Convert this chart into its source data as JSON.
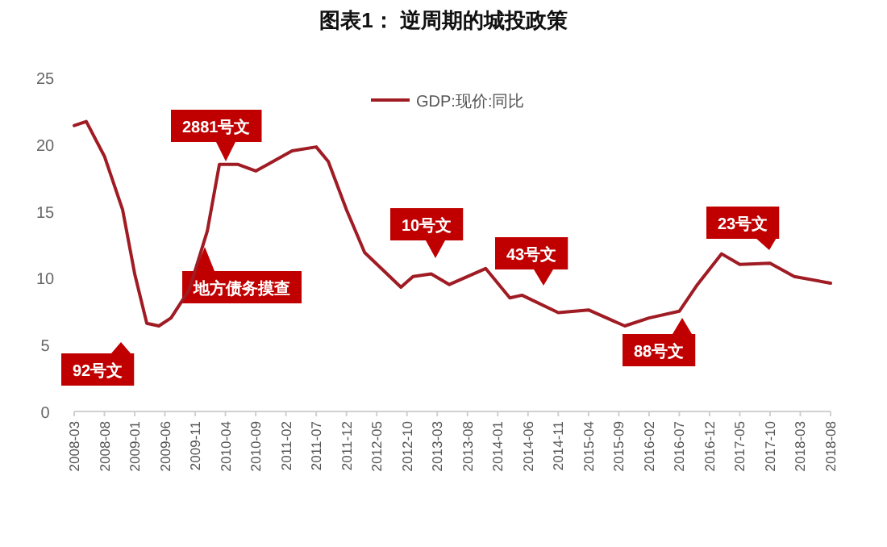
{
  "chart_data": {
    "type": "line",
    "title": "图表1：  逆周期的城投政策",
    "x": [
      "2008-03",
      "2008-05",
      "2008-08",
      "2008-11",
      "2009-01",
      "2009-03",
      "2009-05",
      "2009-07",
      "2009-10",
      "2010-01",
      "2010-03",
      "2010-06",
      "2010-09",
      "2010-11",
      "2011-03",
      "2011-07",
      "2011-09",
      "2011-12",
      "2012-03",
      "2012-09",
      "2012-11",
      "2013-02",
      "2013-05",
      "2013-11",
      "2014-03",
      "2014-05",
      "2014-11",
      "2015-04",
      "2015-10",
      "2016-02",
      "2016-07",
      "2016-10",
      "2017-02",
      "2017-05",
      "2017-10",
      "2018-02",
      "2018-08"
    ],
    "series": [
      {
        "name": "GDP:现价:同比",
        "color": "#a01c24",
        "values": [
          21.4,
          21.7,
          19.1,
          15.1,
          10.3,
          6.6,
          6.4,
          7.0,
          9.1,
          13.5,
          18.5,
          18.5,
          18.0,
          18.5,
          19.5,
          19.8,
          18.7,
          15.1,
          11.9,
          9.3,
          10.1,
          10.3,
          9.5,
          10.7,
          8.5,
          8.7,
          7.4,
          7.6,
          6.4,
          7.0,
          7.5,
          9.5,
          11.8,
          11.0,
          11.1,
          10.1,
          9.6
        ]
      }
    ],
    "xlim": [
      "2008-03",
      "2018-08"
    ],
    "xticks": [
      "2008-03",
      "2008-08",
      "2009-01",
      "2009-06",
      "2009-11",
      "2010-04",
      "2010-09",
      "2011-02",
      "2011-07",
      "2011-12",
      "2012-05",
      "2012-10",
      "2013-03",
      "2013-08",
      "2014-01",
      "2014-06",
      "2014-11",
      "2015-04",
      "2015-09",
      "2016-02",
      "2016-07",
      "2016-12",
      "2017-05",
      "2017-10",
      "2018-03",
      "2018-08"
    ],
    "ylim": [
      0,
      25
    ],
    "yticks": [
      0,
      5,
      10,
      15,
      20,
      25
    ],
    "grid": false,
    "legend": "top",
    "marker": "none",
    "line_style": "solid",
    "annotations": [
      "92号文",
      "2881号文",
      "地方债务摸查",
      "10号文",
      "43号文",
      "88号文",
      "23号文"
    ]
  }
}
